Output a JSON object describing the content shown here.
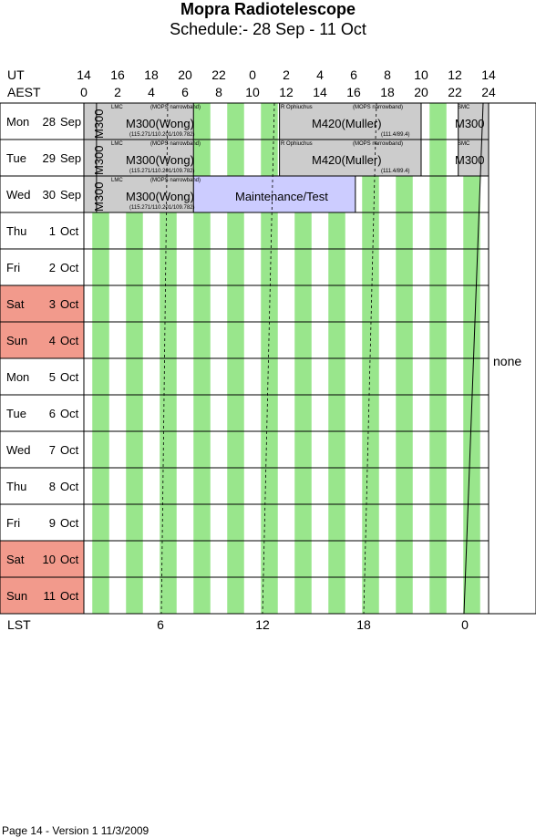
{
  "header": {
    "title": "Mopra Radiotelescope",
    "subtitle": "Schedule:- 28 Sep - 11 Oct",
    "ut_label": "UT",
    "aest_label": "AEST",
    "ut_hours": [
      "14",
      "16",
      "18",
      "20",
      "22",
      "0",
      "2",
      "4",
      "6",
      "8",
      "10",
      "12",
      "14"
    ],
    "aest_hours": [
      "0",
      "2",
      "4",
      "6",
      "8",
      "10",
      "12",
      "14",
      "16",
      "18",
      "20",
      "22",
      "24"
    ]
  },
  "days": [
    {
      "name": "Mon",
      "num": "28",
      "month": "Sep",
      "weekend": false
    },
    {
      "name": "Tue",
      "num": "29",
      "month": "Sep",
      "weekend": false
    },
    {
      "name": "Wed",
      "num": "30",
      "month": "Sep",
      "weekend": false
    },
    {
      "name": "Thu",
      "num": "1",
      "month": "Oct",
      "weekend": false
    },
    {
      "name": "Fri",
      "num": "2",
      "month": "Oct",
      "weekend": false
    },
    {
      "name": "Sat",
      "num": "3",
      "month": "Oct",
      "weekend": true
    },
    {
      "name": "Sun",
      "num": "4",
      "month": "Oct",
      "weekend": true
    },
    {
      "name": "Mon",
      "num": "5",
      "month": "Oct",
      "weekend": false
    },
    {
      "name": "Tue",
      "num": "6",
      "month": "Oct",
      "weekend": false
    },
    {
      "name": "Wed",
      "num": "7",
      "month": "Oct",
      "weekend": false
    },
    {
      "name": "Thu",
      "num": "8",
      "month": "Oct",
      "weekend": false
    },
    {
      "name": "Fri",
      "num": "9",
      "month": "Oct",
      "weekend": false
    },
    {
      "name": "Sat",
      "num": "10",
      "month": "Oct",
      "weekend": true
    },
    {
      "name": "Sun",
      "num": "11",
      "month": "Oct",
      "weekend": true
    }
  ],
  "bookings": {
    "m300_label": "M300",
    "m300_wong": "M300(Wong)",
    "lmc": "LMC",
    "mops_narrowband": "(MOPS narrowband)",
    "wong_freqs": "(115.271/110.201/109.782)",
    "r_ophiuchus": "R Ophiuchus",
    "m420_muller": "M420(Muller)",
    "muller_freqs": "(111.4/89.4)",
    "smc": "SMC",
    "maintenance": "Maintenance/Test"
  },
  "unallocated_label": "none",
  "lst": {
    "label": "LST",
    "ticks": [
      "6",
      "12",
      "18",
      "0"
    ]
  },
  "footer": "Page 14 - Version 1  11/3/2009",
  "colors": {
    "green_stripe": "#99e68c",
    "booking_grey": "#cccccc",
    "maintenance_blue": "#ccccff",
    "weekend_red": "#f29a8c"
  }
}
